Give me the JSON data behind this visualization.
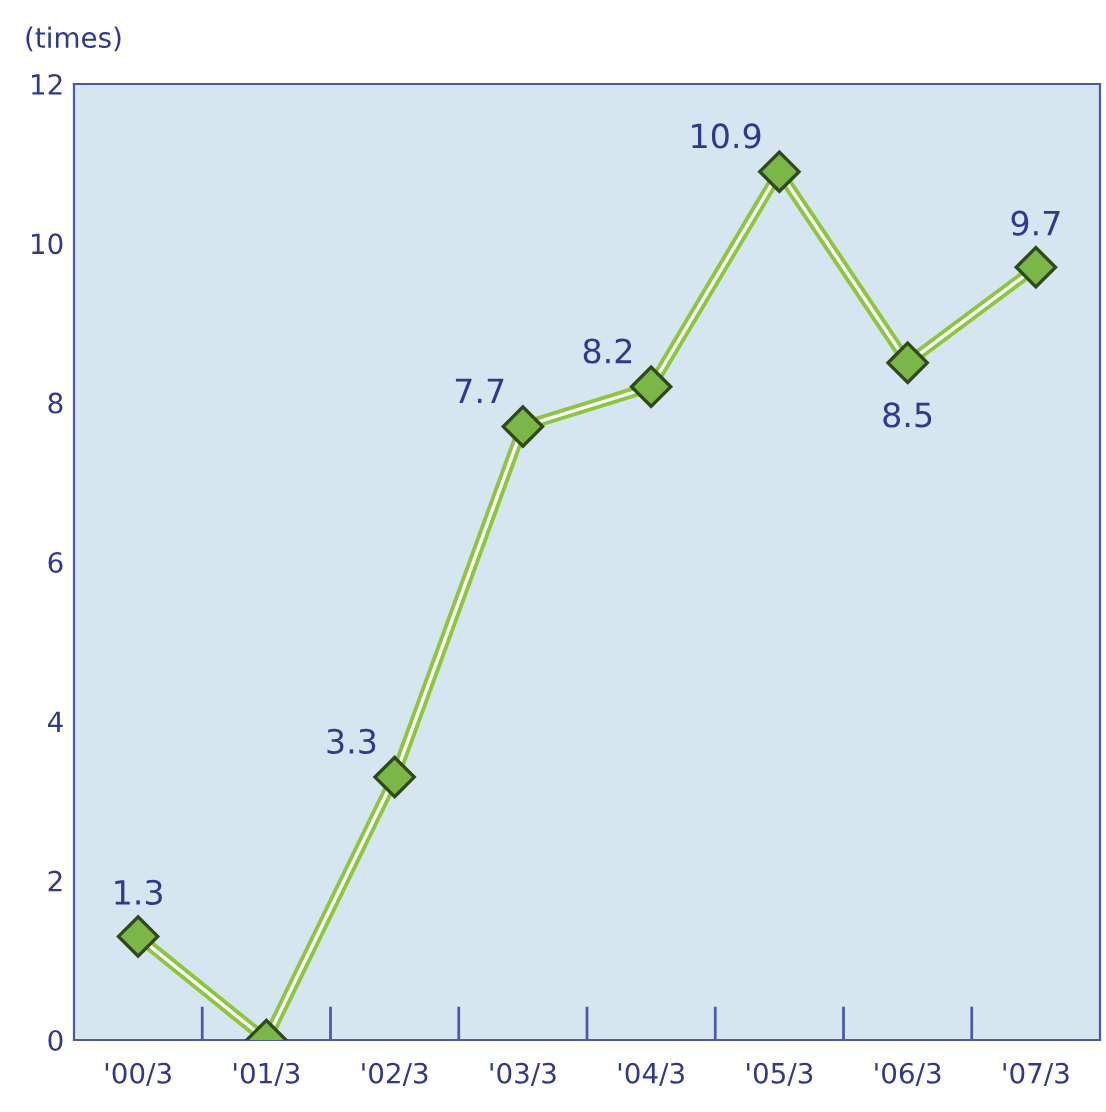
{
  "chart_data": {
    "type": "line",
    "ylabel": "(times)",
    "categories": [
      "'00/3",
      "'01/3",
      "'02/3",
      "'03/3",
      "'04/3",
      "'05/3",
      "'06/3",
      "'07/3"
    ],
    "series": [
      {
        "color": "#8cc63f",
        "values": [
          1.3,
          0,
          3.3,
          7.7,
          8.2,
          10.9,
          8.5,
          9.7
        ],
        "value_labels": [
          "1.3",
          null,
          "3.3",
          "7.7",
          "8.2",
          "10.9",
          "8.5",
          "9.7"
        ]
      }
    ],
    "ylim": [
      0,
      12
    ],
    "yticks": [
      0,
      2,
      4,
      6,
      8,
      10,
      12
    ],
    "marker": "diamond",
    "line_style": "solid",
    "grid": false,
    "legend": false
  }
}
